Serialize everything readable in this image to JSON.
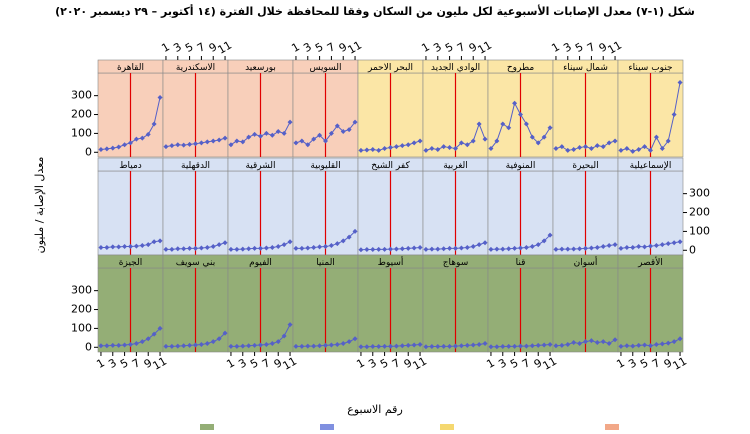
{
  "chart_data": {
    "type": "line",
    "title": "شكل (١-٧) معدل الإصابات الأسبوعية لكل مليون من السكان وفقا للمحافظة خلال الفترة (١٤ أكتوبر – ٢٩ ديسمبر ٢٠٢٠)",
    "x_label": "رقم الاسبوع",
    "y_label": "معدل الإصابة / مليون",
    "x": [
      1,
      2,
      3,
      4,
      5,
      6,
      7,
      8,
      9,
      10,
      11
    ],
    "xlim": [
      0.5,
      11.5
    ],
    "xticks": [
      1,
      3,
      5,
      7,
      9,
      11
    ],
    "ylim": [
      -25,
      420
    ],
    "yticks": [
      0,
      100,
      200,
      300
    ],
    "vline": 6,
    "vline_color": "#e00000",
    "line_color": "#5560c8",
    "columns": 9,
    "series": [
      {
        "name": "القاهرة",
        "color": "#f8cfba",
        "values": [
          15,
          18,
          22,
          28,
          40,
          50,
          70,
          75,
          95,
          150,
          290
        ]
      },
      {
        "name": "الاسكندرية",
        "color": "#f8cfba",
        "values": [
          30,
          35,
          40,
          38,
          42,
          45,
          50,
          55,
          60,
          65,
          75
        ]
      },
      {
        "name": "بورسعيد",
        "color": "#f8cfba",
        "values": [
          40,
          60,
          55,
          80,
          95,
          85,
          100,
          90,
          110,
          100,
          160
        ]
      },
      {
        "name": "السويس",
        "color": "#f8cfba",
        "values": [
          50,
          60,
          40,
          70,
          90,
          60,
          100,
          140,
          110,
          120,
          160
        ]
      },
      {
        "name": "البحر الاحمر",
        "color": "#fbe6a6",
        "values": [
          10,
          12,
          15,
          10,
          20,
          25,
          30,
          35,
          40,
          50,
          60
        ]
      },
      {
        "name": "الوادي الجديد",
        "color": "#fbe6a6",
        "values": [
          10,
          20,
          15,
          30,
          25,
          20,
          50,
          40,
          60,
          150,
          70
        ]
      },
      {
        "name": "مطروح",
        "color": "#fbe6a6",
        "values": [
          20,
          60,
          150,
          130,
          260,
          200,
          150,
          80,
          50,
          80,
          130
        ]
      },
      {
        "name": "شمال سيناء",
        "color": "#fbe6a6",
        "values": [
          20,
          30,
          10,
          15,
          25,
          30,
          20,
          35,
          30,
          50,
          60
        ]
      },
      {
        "name": "جنوب سيناء",
        "color": "#fbe6a6",
        "values": [
          10,
          20,
          5,
          15,
          30,
          10,
          80,
          20,
          60,
          200,
          370
        ]
      },
      {
        "name": "دمياط",
        "color": "#d7e1f3",
        "values": [
          15,
          15,
          18,
          18,
          20,
          20,
          22,
          25,
          30,
          45,
          50
        ]
      },
      {
        "name": "الدقهلية",
        "color": "#d7e1f3",
        "values": [
          5,
          5,
          8,
          8,
          10,
          10,
          12,
          15,
          20,
          30,
          40
        ]
      },
      {
        "name": "الشرقية",
        "color": "#d7e1f3",
        "values": [
          5,
          5,
          6,
          8,
          10,
          10,
          12,
          15,
          20,
          30,
          45
        ]
      },
      {
        "name": "القليوبية",
        "color": "#d7e1f3",
        "values": [
          10,
          10,
          12,
          15,
          18,
          20,
          25,
          35,
          50,
          70,
          100
        ]
      },
      {
        "name": "كفر الشيخ",
        "color": "#d7e1f3",
        "values": [
          3,
          4,
          4,
          5,
          5,
          6,
          7,
          8,
          10,
          12,
          15
        ]
      },
      {
        "name": "الغربية",
        "color": "#d7e1f3",
        "values": [
          5,
          6,
          6,
          8,
          10,
          10,
          12,
          15,
          20,
          30,
          40
        ]
      },
      {
        "name": "المنوفية",
        "color": "#d7e1f3",
        "values": [
          5,
          6,
          6,
          8,
          10,
          12,
          15,
          20,
          30,
          50,
          80
        ]
      },
      {
        "name": "البحيرة",
        "color": "#d7e1f3",
        "values": [
          5,
          6,
          6,
          7,
          8,
          10,
          12,
          15,
          20,
          25,
          30
        ]
      },
      {
        "name": "الإسماعيلية",
        "color": "#d7e1f3",
        "values": [
          10,
          15,
          15,
          20,
          18,
          22,
          25,
          30,
          35,
          40,
          45
        ]
      },
      {
        "name": "الجيزة",
        "color": "#94ae76",
        "values": [
          8,
          8,
          10,
          10,
          12,
          15,
          20,
          30,
          45,
          70,
          100
        ]
      },
      {
        "name": "بني سويف",
        "color": "#94ae76",
        "values": [
          5,
          5,
          6,
          8,
          10,
          12,
          15,
          20,
          30,
          45,
          75
        ]
      },
      {
        "name": "الفيوم",
        "color": "#94ae76",
        "values": [
          5,
          5,
          6,
          8,
          10,
          12,
          15,
          20,
          30,
          60,
          120
        ]
      },
      {
        "name": "المنيا",
        "color": "#94ae76",
        "values": [
          5,
          5,
          6,
          6,
          8,
          10,
          12,
          15,
          20,
          30,
          45
        ]
      },
      {
        "name": "أسيوط",
        "color": "#94ae76",
        "values": [
          3,
          3,
          4,
          4,
          5,
          5,
          6,
          8,
          10,
          12,
          15
        ]
      },
      {
        "name": "سوهاج",
        "color": "#94ae76",
        "values": [
          3,
          4,
          4,
          5,
          5,
          6,
          8,
          10,
          12,
          15,
          20
        ]
      },
      {
        "name": "قنا",
        "color": "#94ae76",
        "values": [
          3,
          3,
          4,
          5,
          5,
          6,
          6,
          8,
          10,
          12,
          15
        ]
      },
      {
        "name": "أسوان",
        "color": "#94ae76",
        "values": [
          8,
          10,
          15,
          25,
          20,
          30,
          35,
          25,
          30,
          20,
          40
        ]
      },
      {
        "name": "الأقصر",
        "color": "#94ae76",
        "values": [
          5,
          8,
          6,
          10,
          12,
          8,
          15,
          18,
          22,
          30,
          45
        ]
      }
    ]
  }
}
